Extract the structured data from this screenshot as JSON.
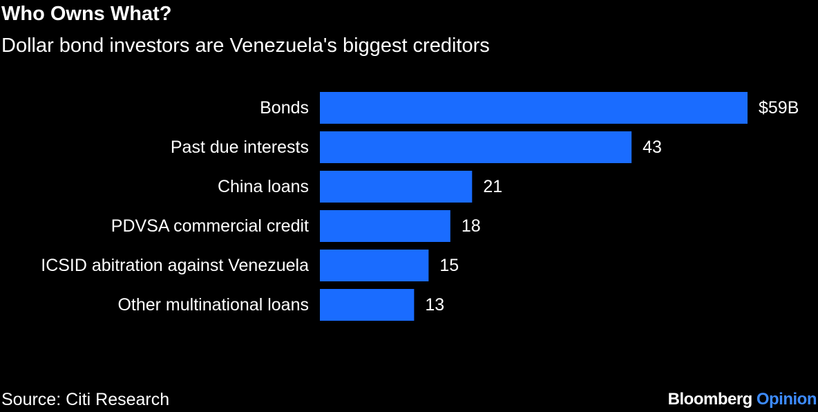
{
  "header": {
    "title": "Who Owns What?",
    "subtitle": "Dollar bond investors are Venezuela's biggest creditors"
  },
  "footer": {
    "source": "Source: Citi Research",
    "brand_primary": "Bloomberg",
    "brand_secondary": "Opinion"
  },
  "colors": {
    "background": "#000000",
    "bar": "#1a6cff",
    "text": "#ffffff",
    "brand_accent": "#3d8bff"
  },
  "chart_data": {
    "type": "bar",
    "orientation": "horizontal",
    "title": "Who Owns What?",
    "subtitle": "Dollar bond investors are Venezuela's biggest creditors",
    "categories": [
      "Bonds",
      "Past due interests",
      "China loans",
      "PDVSA commercial credit",
      "ICSID abitration against Venezuela",
      "Other multinational loans"
    ],
    "values": [
      59,
      43,
      21,
      18,
      15,
      13
    ],
    "value_labels": [
      "$59B",
      "43",
      "21",
      "18",
      "15",
      "13"
    ],
    "xlim": [
      0,
      59
    ],
    "grid": false,
    "legend": "none"
  }
}
